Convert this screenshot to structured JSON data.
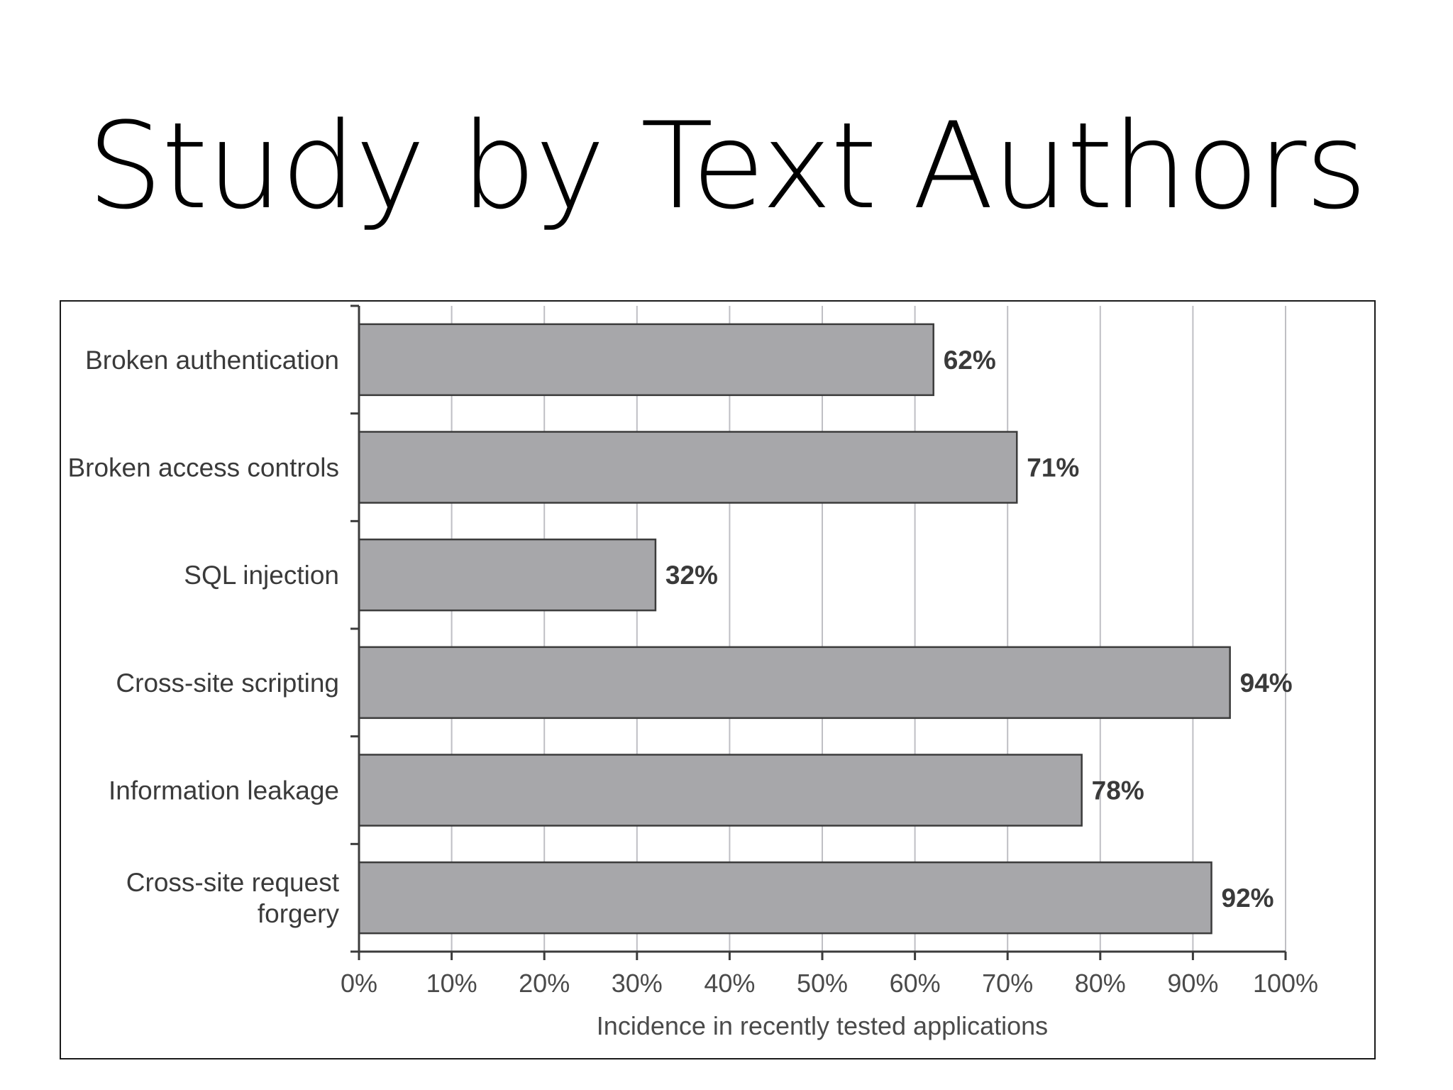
{
  "slide": {
    "title": "Study by Text Authors"
  },
  "chart_data": {
    "type": "bar",
    "orientation": "horizontal",
    "categories": [
      [
        "Broken authentication"
      ],
      [
        "Broken access controls"
      ],
      [
        "SQL injection"
      ],
      [
        "Cross-site scripting"
      ],
      [
        "Information leakage"
      ],
      [
        "Cross-site request",
        "forgery"
      ]
    ],
    "values": [
      62,
      71,
      32,
      94,
      78,
      92
    ],
    "data_labels": [
      "62%",
      "71%",
      "32%",
      "94%",
      "78%",
      "92%"
    ],
    "x_ticks": [
      "0%",
      "10%",
      "20%",
      "30%",
      "40%",
      "50%",
      "60%",
      "70%",
      "80%",
      "90%",
      "100%"
    ],
    "xlabel": "Incidence in recently tested applications",
    "xlim": [
      0,
      100
    ],
    "grid": "vertical",
    "colors": {
      "bar_fill": "#a7a7aa",
      "bar_stroke": "#3c3c3c",
      "grid": "#bfbfc4",
      "axis": "#3c3c3c"
    }
  }
}
